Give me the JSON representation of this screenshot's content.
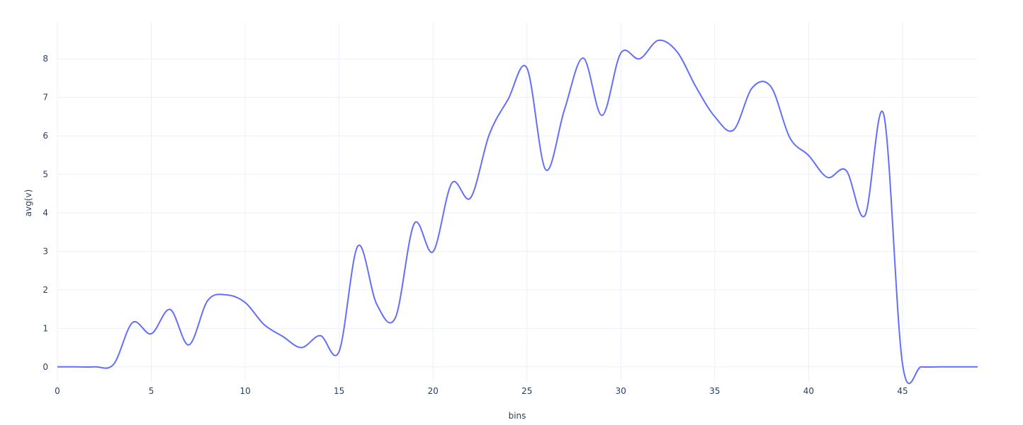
{
  "chart_data": {
    "type": "line",
    "x_label": "bins",
    "y_label": "avg(v)",
    "x": [
      0,
      1,
      2,
      3,
      4,
      5,
      6,
      7,
      8,
      9,
      10,
      11,
      12,
      13,
      14,
      15,
      16,
      17,
      18,
      19,
      20,
      21,
      22,
      23,
      24,
      25,
      26,
      27,
      28,
      29,
      30,
      31,
      32,
      33,
      34,
      35,
      36,
      37,
      38,
      39,
      40,
      41,
      42,
      43,
      44,
      45,
      46,
      47,
      48,
      49
    ],
    "series": [
      {
        "name": "avg(v)",
        "color": "#636efa",
        "values": [
          0,
          0,
          0,
          0.07,
          1.15,
          0.86,
          1.49,
          0.57,
          1.72,
          1.87,
          1.67,
          1.1,
          0.79,
          0.5,
          0.81,
          0.4,
          3.14,
          1.63,
          1.28,
          3.72,
          2.99,
          4.77,
          4.39,
          6.04,
          6.95,
          7.76,
          5.12,
          6.68,
          8.02,
          6.53,
          8.15,
          8.0,
          8.48,
          8.18,
          7.27,
          6.5,
          6.15,
          7.25,
          7.27,
          5.95,
          5.49,
          4.92,
          5.1,
          3.93,
          6.55,
          0.07,
          0,
          0,
          0,
          0
        ]
      }
    ],
    "xlim": [
      0,
      49
    ],
    "ylim": [
      -0.39,
      8.94
    ],
    "xticks": [
      0,
      5,
      10,
      15,
      20,
      25,
      30,
      35,
      40,
      45
    ],
    "yticks": [
      0,
      1,
      2,
      3,
      4,
      5,
      6,
      7,
      8
    ],
    "grid": true,
    "smooth": true
  }
}
